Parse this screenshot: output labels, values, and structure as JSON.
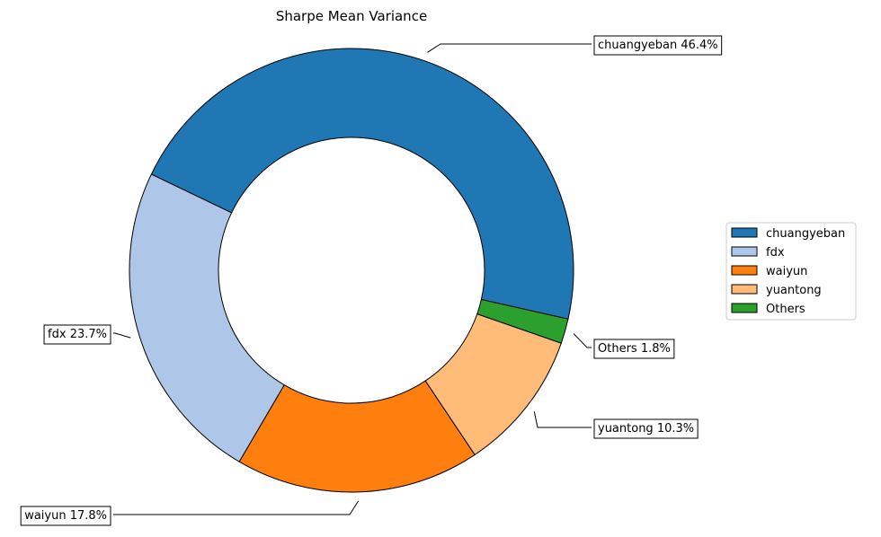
{
  "chart_data": {
    "type": "pie",
    "donut": true,
    "title": "Sharpe Mean Variance",
    "slices": [
      {
        "label": "chuangyeban",
        "value": 46.4,
        "pct_label": "chuangyeban 46.4%",
        "color": "#1f77b4"
      },
      {
        "label": "fdx",
        "value": 23.7,
        "pct_label": "fdx 23.7%",
        "color": "#aec7e8"
      },
      {
        "label": "waiyun",
        "value": 17.8,
        "pct_label": "waiyun 17.8%",
        "color": "#ff7f0e"
      },
      {
        "label": "yuantong",
        "value": 10.3,
        "pct_label": "yuantong 10.3%",
        "color": "#ffbb78"
      },
      {
        "label": "Others",
        "value": 1.8,
        "pct_label": "Others 1.8%",
        "color": "#2ca02c"
      }
    ],
    "legend": {
      "placement": "center-right"
    }
  }
}
